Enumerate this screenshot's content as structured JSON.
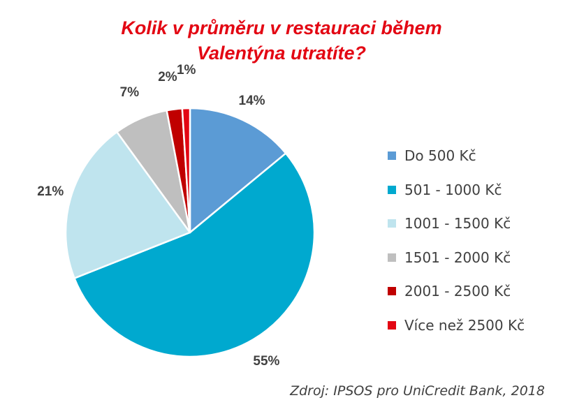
{
  "chart_data": {
    "type": "pie",
    "title_lines": [
      "Kolik v průměru v restauraci během",
      "Valentýna utratíte?"
    ],
    "slices": [
      {
        "name": "Do 500 Kč",
        "value": 14,
        "label": "14%",
        "color": "#5b9bd5"
      },
      {
        "name": "501 - 1000 Kč",
        "value": 55,
        "label": "55%",
        "color": "#00a9cf"
      },
      {
        "name": "1001 - 1500 Kč",
        "value": 21,
        "label": "21%",
        "color": "#bfe4ee"
      },
      {
        "name": "1501 - 2000 Kč",
        "value": 7,
        "label": "7%",
        "color": "#bfbfbf"
      },
      {
        "name": "2001 - 2500 Kč",
        "value": 2,
        "label": "2%",
        "color": "#c00000"
      },
      {
        "name": "Více než 2500 Kč",
        "value": 1,
        "label": "1%",
        "color": "#e30613"
      }
    ],
    "legend_position": "right",
    "source": "Zdroj: IPSOS pro UniCredit Bank, 2018"
  }
}
